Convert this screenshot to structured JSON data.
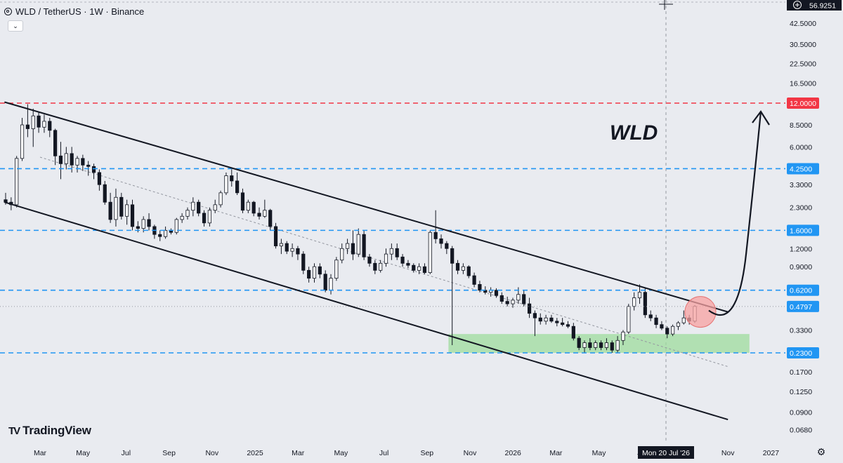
{
  "header": {
    "symbol": "WLD",
    "quote": "TetherUS",
    "timeframe": "1W",
    "exchange": "Binance",
    "title_text": "WLD / TetherUS · 1W · Binance",
    "coin_icon": "worldcoin-icon",
    "collapse_icon": "chevron-down-icon"
  },
  "logo": {
    "text": "TradingView",
    "icon": "tradingview-logo-icon"
  },
  "settings_icon": "gear-icon",
  "price_axis": {
    "scale": "log",
    "ticks": [
      "42.5000",
      "30.5000",
      "22.5000",
      "16.5000",
      "12.0000",
      "8.5000",
      "6.0000",
      "4.2500",
      "3.3000",
      "2.3000",
      "1.6000",
      "1.2000",
      "0.9000",
      "0.6200",
      "0.4797",
      "0.3300",
      "0.2300",
      "0.1700",
      "0.1250",
      "0.0900",
      "0.0680"
    ],
    "crosshair_label": "56.9251"
  },
  "time_axis": {
    "ticks": [
      "Mar",
      "May",
      "Jul",
      "Sep",
      "Nov",
      "2025",
      "Mar",
      "May",
      "Jul",
      "Sep",
      "Nov",
      "2026",
      "Mar",
      "May",
      "Jul",
      "Sep",
      "Nov",
      "2027"
    ],
    "crosshair_label": "Mon 20 Jul '26"
  },
  "levels": [
    {
      "price": 12.0,
      "label": "12.0000",
      "color": "#f23645"
    },
    {
      "price": 4.25,
      "label": "4.2500",
      "color": "#2196f3"
    },
    {
      "price": 1.6,
      "label": "1.6000",
      "color": "#2196f3"
    },
    {
      "price": 0.62,
      "label": "0.6200",
      "color": "#2196f3"
    },
    {
      "price": 0.23,
      "label": "0.2300",
      "color": "#2196f3"
    }
  ],
  "last_price": {
    "price": 0.4797,
    "label": "0.4797",
    "color": "#2196f3"
  },
  "annotation": {
    "text": "WLD"
  },
  "colors": {
    "background": "#e9ebf0",
    "candle": "#131722",
    "resistance": "#f23645",
    "support": "#2196f3",
    "zone": "#9edc9e",
    "highlight": "#f7a1a1"
  },
  "chart_data": {
    "type": "candlestick",
    "title": "WLD / TetherUS · 1W · Binance",
    "y_scale": "log",
    "ylim": [
      0.06,
      60
    ],
    "x_range": [
      "2024-02",
      "2027-02"
    ],
    "candles": [
      {
        "o": 2.6,
        "h": 2.9,
        "l": 2.4,
        "c": 2.5
      },
      {
        "o": 2.5,
        "h": 2.7,
        "l": 2.2,
        "c": 2.4
      },
      {
        "o": 2.4,
        "h": 5.2,
        "l": 2.3,
        "c": 5.0
      },
      {
        "o": 5.0,
        "h": 9.5,
        "l": 4.8,
        "c": 8.5
      },
      {
        "o": 8.5,
        "h": 11.8,
        "l": 7.0,
        "c": 8.0
      },
      {
        "o": 8.0,
        "h": 11.0,
        "l": 6.0,
        "c": 9.8
      },
      {
        "o": 9.8,
        "h": 10.5,
        "l": 7.5,
        "c": 8.2
      },
      {
        "o": 8.2,
        "h": 10.0,
        "l": 7.5,
        "c": 9.0
      },
      {
        "o": 9.0,
        "h": 9.5,
        "l": 7.0,
        "c": 7.8
      },
      {
        "o": 7.8,
        "h": 8.0,
        "l": 4.5,
        "c": 5.2
      },
      {
        "o": 5.2,
        "h": 6.5,
        "l": 3.6,
        "c": 4.6
      },
      {
        "o": 4.6,
        "h": 6.0,
        "l": 4.2,
        "c": 5.4
      },
      {
        "o": 5.4,
        "h": 6.0,
        "l": 4.0,
        "c": 4.5
      },
      {
        "o": 4.5,
        "h": 5.2,
        "l": 4.0,
        "c": 5.0
      },
      {
        "o": 5.0,
        "h": 5.3,
        "l": 4.1,
        "c": 4.5
      },
      {
        "o": 4.5,
        "h": 4.8,
        "l": 3.8,
        "c": 4.4
      },
      {
        "o": 4.4,
        "h": 4.6,
        "l": 3.6,
        "c": 4.0
      },
      {
        "o": 4.0,
        "h": 4.2,
        "l": 3.0,
        "c": 3.3
      },
      {
        "o": 3.3,
        "h": 3.5,
        "l": 2.4,
        "c": 2.5
      },
      {
        "o": 2.5,
        "h": 2.9,
        "l": 1.8,
        "c": 1.9
      },
      {
        "o": 1.9,
        "h": 3.1,
        "l": 1.7,
        "c": 2.7
      },
      {
        "o": 2.7,
        "h": 2.9,
        "l": 1.9,
        "c": 2.0
      },
      {
        "o": 2.0,
        "h": 2.6,
        "l": 1.75,
        "c": 2.4
      },
      {
        "o": 2.4,
        "h": 2.6,
        "l": 1.6,
        "c": 1.7
      },
      {
        "o": 1.7,
        "h": 1.85,
        "l": 1.55,
        "c": 1.65
      },
      {
        "o": 1.65,
        "h": 2.0,
        "l": 1.55,
        "c": 1.9
      },
      {
        "o": 1.9,
        "h": 2.1,
        "l": 1.6,
        "c": 1.7
      },
      {
        "o": 1.7,
        "h": 1.75,
        "l": 1.4,
        "c": 1.5
      },
      {
        "o": 1.5,
        "h": 1.6,
        "l": 1.35,
        "c": 1.45
      },
      {
        "o": 1.45,
        "h": 1.7,
        "l": 1.4,
        "c": 1.6
      },
      {
        "o": 1.6,
        "h": 1.65,
        "l": 1.5,
        "c": 1.55
      },
      {
        "o": 1.55,
        "h": 1.95,
        "l": 1.5,
        "c": 1.9
      },
      {
        "o": 1.9,
        "h": 2.1,
        "l": 1.8,
        "c": 2.0
      },
      {
        "o": 2.0,
        "h": 2.3,
        "l": 1.9,
        "c": 2.2
      },
      {
        "o": 2.2,
        "h": 2.7,
        "l": 2.0,
        "c": 2.5
      },
      {
        "o": 2.5,
        "h": 2.6,
        "l": 2.0,
        "c": 2.1
      },
      {
        "o": 2.1,
        "h": 2.2,
        "l": 1.7,
        "c": 1.8
      },
      {
        "o": 1.8,
        "h": 2.3,
        "l": 1.7,
        "c": 2.2
      },
      {
        "o": 2.2,
        "h": 2.6,
        "l": 2.1,
        "c": 2.4
      },
      {
        "o": 2.4,
        "h": 3.0,
        "l": 2.3,
        "c": 2.9
      },
      {
        "o": 2.9,
        "h": 4.0,
        "l": 2.8,
        "c": 3.8
      },
      {
        "o": 3.8,
        "h": 4.2,
        "l": 3.2,
        "c": 3.5
      },
      {
        "o": 3.5,
        "h": 4.0,
        "l": 2.8,
        "c": 2.9
      },
      {
        "o": 2.9,
        "h": 3.1,
        "l": 2.1,
        "c": 2.2
      },
      {
        "o": 2.2,
        "h": 2.6,
        "l": 2.1,
        "c": 2.5
      },
      {
        "o": 2.5,
        "h": 2.55,
        "l": 2.0,
        "c": 2.1
      },
      {
        "o": 2.1,
        "h": 2.3,
        "l": 1.9,
        "c": 2.0
      },
      {
        "o": 2.0,
        "h": 2.6,
        "l": 1.95,
        "c": 2.2
      },
      {
        "o": 2.2,
        "h": 2.25,
        "l": 1.6,
        "c": 1.7
      },
      {
        "o": 1.7,
        "h": 1.8,
        "l": 1.2,
        "c": 1.25
      },
      {
        "o": 1.25,
        "h": 1.4,
        "l": 1.1,
        "c": 1.3
      },
      {
        "o": 1.3,
        "h": 1.35,
        "l": 1.1,
        "c": 1.15
      },
      {
        "o": 1.15,
        "h": 1.3,
        "l": 1.05,
        "c": 1.2
      },
      {
        "o": 1.2,
        "h": 1.25,
        "l": 1.0,
        "c": 1.1
      },
      {
        "o": 1.1,
        "h": 1.15,
        "l": 0.8,
        "c": 0.85
      },
      {
        "o": 0.85,
        "h": 0.9,
        "l": 0.7,
        "c": 0.75
      },
      {
        "o": 0.75,
        "h": 0.95,
        "l": 0.7,
        "c": 0.9
      },
      {
        "o": 0.9,
        "h": 0.95,
        "l": 0.75,
        "c": 0.8
      },
      {
        "o": 0.8,
        "h": 0.85,
        "l": 0.6,
        "c": 0.62
      },
      {
        "o": 0.62,
        "h": 0.8,
        "l": 0.58,
        "c": 0.75
      },
      {
        "o": 0.75,
        "h": 1.05,
        "l": 0.72,
        "c": 1.0
      },
      {
        "o": 1.0,
        "h": 1.3,
        "l": 0.95,
        "c": 1.2
      },
      {
        "o": 1.2,
        "h": 1.4,
        "l": 1.1,
        "c": 1.3
      },
      {
        "o": 1.3,
        "h": 1.6,
        "l": 1.0,
        "c": 1.1
      },
      {
        "o": 1.1,
        "h": 1.65,
        "l": 1.05,
        "c": 1.5
      },
      {
        "o": 1.5,
        "h": 1.6,
        "l": 1.0,
        "c": 1.05
      },
      {
        "o": 1.05,
        "h": 1.1,
        "l": 0.9,
        "c": 0.95
      },
      {
        "o": 0.95,
        "h": 1.0,
        "l": 0.8,
        "c": 0.85
      },
      {
        "o": 0.85,
        "h": 1.0,
        "l": 0.82,
        "c": 0.95
      },
      {
        "o": 0.95,
        "h": 1.2,
        "l": 0.9,
        "c": 1.1
      },
      {
        "o": 1.1,
        "h": 1.3,
        "l": 1.0,
        "c": 1.2
      },
      {
        "o": 1.2,
        "h": 1.3,
        "l": 1.0,
        "c": 1.05
      },
      {
        "o": 1.05,
        "h": 1.1,
        "l": 0.9,
        "c": 0.95
      },
      {
        "o": 0.95,
        "h": 1.0,
        "l": 0.88,
        "c": 0.92
      },
      {
        "o": 0.92,
        "h": 0.95,
        "l": 0.82,
        "c": 0.85
      },
      {
        "o": 0.85,
        "h": 0.95,
        "l": 0.8,
        "c": 0.9
      },
      {
        "o": 0.9,
        "h": 0.95,
        "l": 0.8,
        "c": 0.82
      },
      {
        "o": 0.82,
        "h": 1.6,
        "l": 0.8,
        "c": 1.55
      },
      {
        "o": 1.55,
        "h": 2.2,
        "l": 1.3,
        "c": 1.4
      },
      {
        "o": 1.4,
        "h": 1.5,
        "l": 1.2,
        "c": 1.3
      },
      {
        "o": 1.3,
        "h": 1.35,
        "l": 1.1,
        "c": 1.2
      },
      {
        "o": 1.2,
        "h": 1.25,
        "l": 0.26,
        "c": 0.95
      },
      {
        "o": 0.95,
        "h": 1.0,
        "l": 0.8,
        "c": 0.85
      },
      {
        "o": 0.85,
        "h": 0.95,
        "l": 0.8,
        "c": 0.9
      },
      {
        "o": 0.9,
        "h": 0.92,
        "l": 0.75,
        "c": 0.78
      },
      {
        "o": 0.78,
        "h": 0.82,
        "l": 0.65,
        "c": 0.68
      },
      {
        "o": 0.68,
        "h": 0.72,
        "l": 0.6,
        "c": 0.62
      },
      {
        "o": 0.62,
        "h": 0.66,
        "l": 0.58,
        "c": 0.6
      },
      {
        "o": 0.6,
        "h": 0.65,
        "l": 0.56,
        "c": 0.62
      },
      {
        "o": 0.62,
        "h": 0.64,
        "l": 0.55,
        "c": 0.57
      },
      {
        "o": 0.57,
        "h": 0.6,
        "l": 0.5,
        "c": 0.52
      },
      {
        "o": 0.52,
        "h": 0.56,
        "l": 0.48,
        "c": 0.5
      },
      {
        "o": 0.5,
        "h": 0.55,
        "l": 0.47,
        "c": 0.53
      },
      {
        "o": 0.53,
        "h": 0.65,
        "l": 0.5,
        "c": 0.58
      },
      {
        "o": 0.58,
        "h": 0.62,
        "l": 0.48,
        "c": 0.5
      },
      {
        "o": 0.5,
        "h": 0.55,
        "l": 0.4,
        "c": 0.43
      },
      {
        "o": 0.43,
        "h": 0.45,
        "l": 0.3,
        "c": 0.4
      },
      {
        "o": 0.4,
        "h": 0.43,
        "l": 0.36,
        "c": 0.38
      },
      {
        "o": 0.38,
        "h": 0.42,
        "l": 0.36,
        "c": 0.4
      },
      {
        "o": 0.4,
        "h": 0.42,
        "l": 0.37,
        "c": 0.38
      },
      {
        "o": 0.38,
        "h": 0.4,
        "l": 0.35,
        "c": 0.37
      },
      {
        "o": 0.37,
        "h": 0.4,
        "l": 0.35,
        "c": 0.36
      },
      {
        "o": 0.36,
        "h": 0.38,
        "l": 0.34,
        "c": 0.35
      },
      {
        "o": 0.35,
        "h": 0.37,
        "l": 0.28,
        "c": 0.29
      },
      {
        "o": 0.29,
        "h": 0.3,
        "l": 0.24,
        "c": 0.25
      },
      {
        "o": 0.25,
        "h": 0.28,
        "l": 0.23,
        "c": 0.27
      },
      {
        "o": 0.27,
        "h": 0.29,
        "l": 0.24,
        "c": 0.25
      },
      {
        "o": 0.25,
        "h": 0.28,
        "l": 0.24,
        "c": 0.27
      },
      {
        "o": 0.27,
        "h": 0.28,
        "l": 0.24,
        "c": 0.25
      },
      {
        "o": 0.25,
        "h": 0.29,
        "l": 0.24,
        "c": 0.27
      },
      {
        "o": 0.27,
        "h": 0.28,
        "l": 0.23,
        "c": 0.24
      },
      {
        "o": 0.24,
        "h": 0.3,
        "l": 0.23,
        "c": 0.28
      },
      {
        "o": 0.28,
        "h": 0.33,
        "l": 0.26,
        "c": 0.32
      },
      {
        "o": 0.32,
        "h": 0.5,
        "l": 0.31,
        "c": 0.48
      },
      {
        "o": 0.48,
        "h": 0.6,
        "l": 0.45,
        "c": 0.55
      },
      {
        "o": 0.55,
        "h": 0.68,
        "l": 0.5,
        "c": 0.6
      },
      {
        "o": 0.6,
        "h": 0.65,
        "l": 0.4,
        "c": 0.42
      },
      {
        "o": 0.42,
        "h": 0.45,
        "l": 0.38,
        "c": 0.4
      },
      {
        "o": 0.4,
        "h": 0.42,
        "l": 0.34,
        "c": 0.36
      },
      {
        "o": 0.36,
        "h": 0.38,
        "l": 0.33,
        "c": 0.34
      },
      {
        "o": 0.34,
        "h": 0.35,
        "l": 0.29,
        "c": 0.31
      },
      {
        "o": 0.31,
        "h": 0.36,
        "l": 0.3,
        "c": 0.35
      },
      {
        "o": 0.35,
        "h": 0.38,
        "l": 0.33,
        "c": 0.37
      },
      {
        "o": 0.37,
        "h": 0.45,
        "l": 0.36,
        "c": 0.4
      },
      {
        "o": 0.4,
        "h": 0.42,
        "l": 0.36,
        "c": 0.38
      },
      {
        "o": 0.38,
        "h": 0.49,
        "l": 0.37,
        "c": 0.48
      }
    ],
    "channel": {
      "upper": [
        {
          "date": "2024-02",
          "price": 12.2
        },
        {
          "date": "2026-11",
          "price": 0.44
        }
      ],
      "lower": [
        {
          "date": "2024-02",
          "price": 2.5
        },
        {
          "date": "2026-11",
          "price": 0.08
        }
      ],
      "midline": [
        {
          "date": "2024-03",
          "price": 5.1
        },
        {
          "date": "2026-11",
          "price": 0.185
        }
      ]
    },
    "support_zone": {
      "from": "2025-10",
      "to": "2026-12",
      "low": 0.23,
      "high": 0.31
    },
    "projection": {
      "from_price": 0.45,
      "to_price": 10.5,
      "direction": "up"
    }
  }
}
